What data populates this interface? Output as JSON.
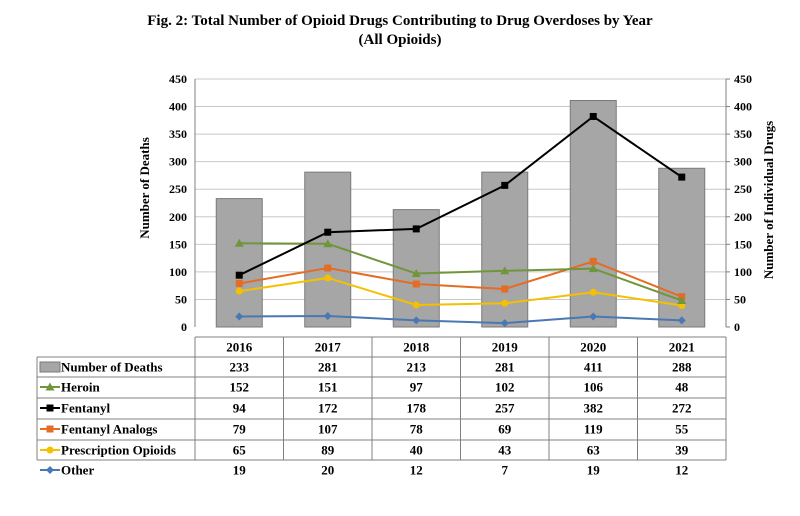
{
  "chart_data": {
    "type": "bar",
    "title": "Fig. 2: Total Number of Opioid Drugs Contributing to Drug Overdoses by Year",
    "subtitle": "(All Opioids)",
    "ylabel": "Number of Deaths",
    "y2label": "Number of Individual Drugs",
    "ylim": [
      0,
      450
    ],
    "y2lim": [
      0,
      450
    ],
    "yticks": [
      "0",
      "50",
      "100",
      "150",
      "200",
      "250",
      "300",
      "350",
      "400",
      "450"
    ],
    "categories": [
      "2016",
      "2017",
      "2018",
      "2019",
      "2020",
      "2021"
    ],
    "grid": true,
    "bar_series": {
      "name": "Number of Deaths",
      "color": "#a6a6a6",
      "values": [
        233,
        281,
        213,
        281,
        411,
        288
      ]
    },
    "line_series": [
      {
        "name": "Heroin",
        "color": "#70963b",
        "marker": "triangle",
        "values": [
          152,
          151,
          97,
          102,
          106,
          48
        ]
      },
      {
        "name": "Fentanyl",
        "color": "#000000",
        "marker": "square",
        "values": [
          94,
          172,
          178,
          257,
          382,
          272
        ]
      },
      {
        "name": "Fentanyl Analogs",
        "color": "#e46c24",
        "marker": "square",
        "values": [
          79,
          107,
          78,
          69,
          119,
          55
        ]
      },
      {
        "name": "Prescription Opioids",
        "color": "#f5c000",
        "marker": "circle",
        "values": [
          65,
          89,
          40,
          43,
          63,
          39
        ]
      },
      {
        "name": "Other",
        "color": "#4a78b4",
        "marker": "diamond",
        "values": [
          19,
          20,
          12,
          7,
          19,
          12
        ]
      }
    ]
  }
}
